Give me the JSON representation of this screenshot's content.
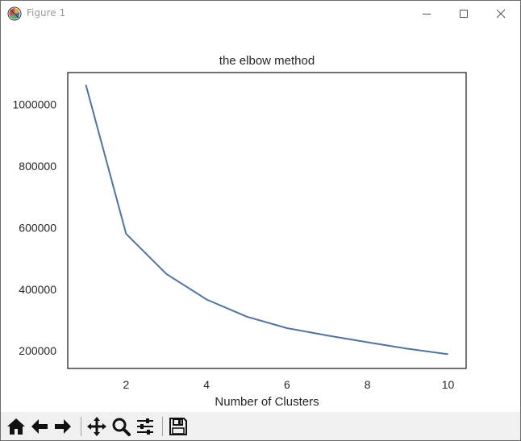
{
  "window": {
    "title": "Figure 1"
  },
  "icons": {
    "app": "matplotlib-icon",
    "minimize": "minimize-icon",
    "maximize": "maximize-icon",
    "close": "close-icon"
  },
  "toolbar": {
    "items": [
      {
        "icon": "home-icon"
      },
      {
        "icon": "back-arrow-icon"
      },
      {
        "icon": "forward-arrow-icon"
      },
      {
        "icon": "pan-icon"
      },
      {
        "icon": "zoom-icon"
      },
      {
        "icon": "configure-subplots-icon"
      },
      {
        "icon": "save-icon"
      }
    ]
  },
  "chart_data": {
    "type": "line",
    "title": "the elbow method",
    "xlabel": "Number of Clusters",
    "ylabel": "",
    "x": [
      1,
      2,
      3,
      4,
      5,
      6,
      7,
      8,
      9,
      10
    ],
    "series": [
      {
        "color": "#4c72b0",
        "values": [
          1064000,
          580000,
          450000,
          367000,
          311000,
          274000,
          250000,
          228000,
          207000,
          189000
        ]
      }
    ],
    "xlim": [
      0.55,
      10.45
    ],
    "ylim": [
      143000,
      1104000
    ],
    "xticks": [
      2,
      4,
      6,
      8,
      10
    ],
    "yticks": [
      200000,
      400000,
      600000,
      800000,
      1000000
    ],
    "grid": false,
    "legend": "none"
  }
}
